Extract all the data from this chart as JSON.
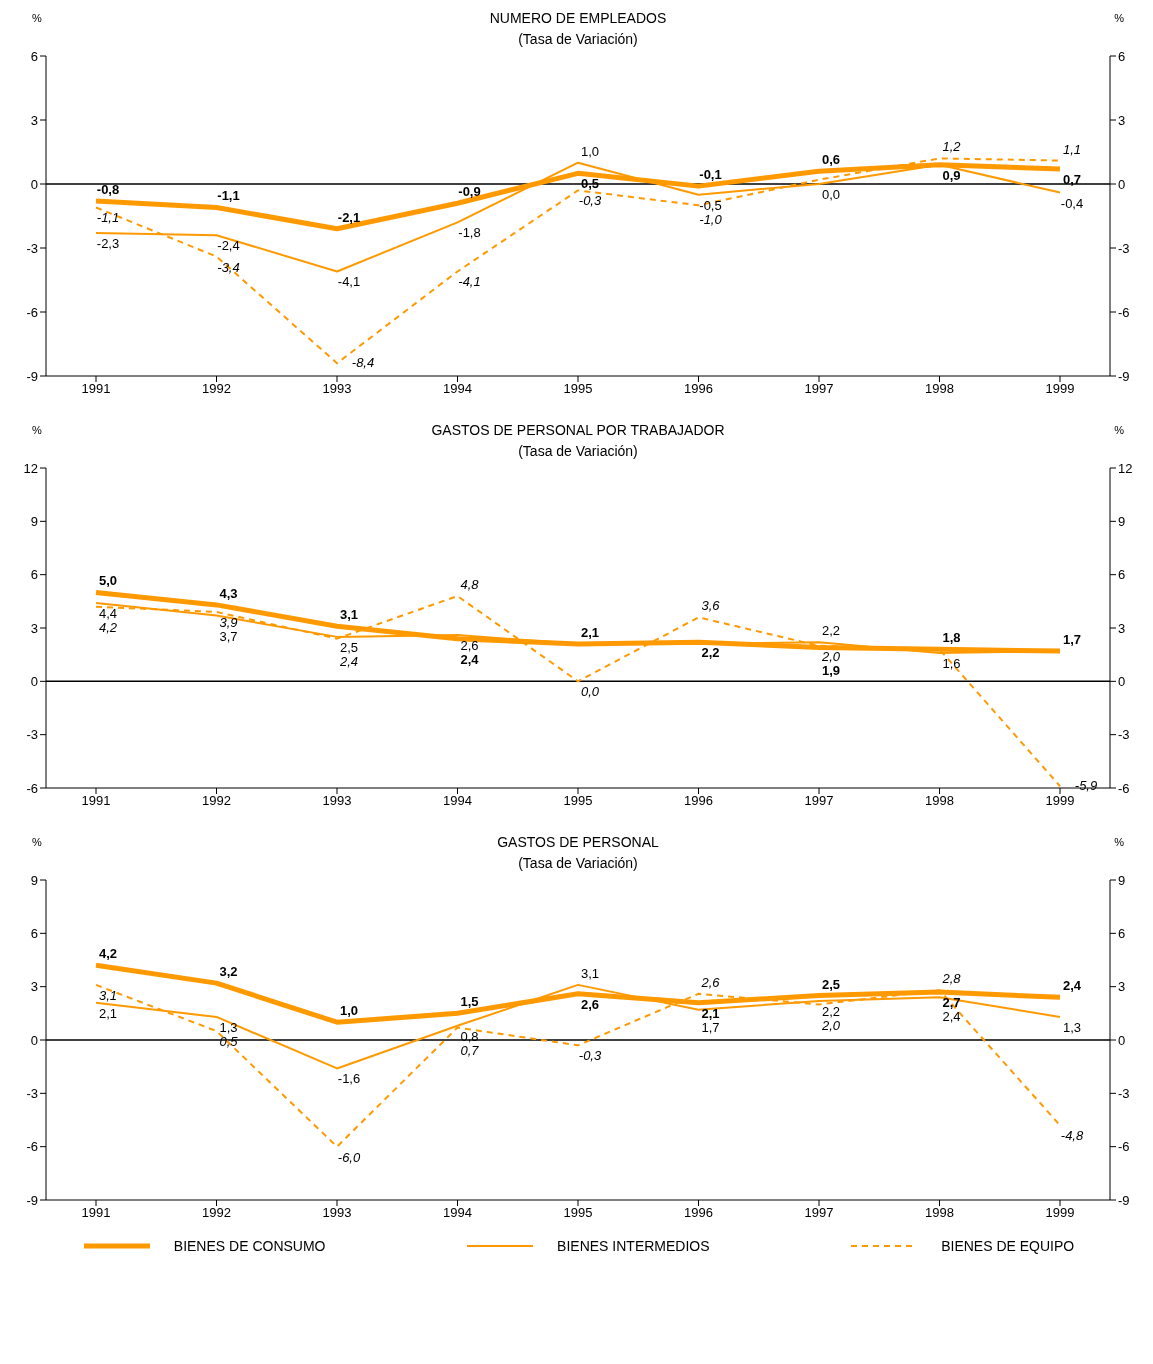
{
  "chart_data": [
    {
      "type": "line",
      "title": "NUMERO DE EMPLEADOS",
      "subtitle": "(Tasa de Variación)",
      "ylabel": "%",
      "y2label": "%",
      "categories": [
        "1991",
        "1992",
        "1993",
        "1994",
        "1995",
        "1996",
        "1997",
        "1998",
        "1999"
      ],
      "ylim": [
        -9,
        6
      ],
      "yticks": [
        -9,
        -6,
        -3,
        0,
        3,
        6
      ],
      "y2lim": [
        -9,
        6
      ],
      "y2ticks": [
        -9,
        -6,
        -3,
        0,
        3,
        6
      ],
      "ref_lines": [
        {
          "axis": "y",
          "value": 0,
          "color": "#000000"
        }
      ],
      "series": [
        {
          "color": "#ff9900",
          "line_style": "solid",
          "values": [
            -0.8,
            -1.1,
            -2.1,
            -0.9,
            0.5,
            -0.1,
            0.6,
            0.9,
            0.7
          ],
          "value_labels": [
            "-0,8",
            "-1,1",
            "-2,1",
            "-0,9",
            "0,5",
            "-0,1",
            "0,6",
            "0,9",
            "0,7"
          ]
        },
        {
          "color": "#ff9900",
          "line_style": "solid",
          "values": [
            -2.3,
            -2.4,
            -4.1,
            -1.8,
            1.0,
            -0.5,
            0.0,
            0.9,
            -0.4
          ],
          "value_labels": [
            "-2,3",
            "-2,4",
            "-4,1",
            "-1,8",
            "1,0",
            "-0,5",
            "0,0",
            null,
            "-0,4"
          ]
        },
        {
          "color": "#ff9900",
          "line_style": "dashed",
          "values": [
            -1.1,
            -3.4,
            -8.4,
            -4.1,
            -0.3,
            -1.0,
            0.2,
            1.2,
            1.1
          ],
          "value_labels": [
            "-1,1",
            "-3,4",
            "-8,4",
            "-4,1",
            "-0,3",
            "-1,0",
            null,
            "1,2",
            "1,1"
          ]
        }
      ]
    },
    {
      "type": "line",
      "title": "GASTOS DE PERSONAL POR TRABAJADOR",
      "subtitle": "(Tasa de Variación)",
      "ylabel": "%",
      "y2label": "%",
      "categories": [
        "1991",
        "1992",
        "1993",
        "1994",
        "1995",
        "1996",
        "1997",
        "1998",
        "1999"
      ],
      "ylim": [
        -6,
        12
      ],
      "yticks": [
        -6,
        -3,
        0,
        3,
        6,
        9,
        12
      ],
      "y2lim": [
        -6,
        12
      ],
      "y2ticks": [
        -6,
        -3,
        0,
        3,
        6,
        9,
        12
      ],
      "ref_lines": [
        {
          "axis": "y",
          "value": 0,
          "color": "#000000"
        }
      ],
      "series": [
        {
          "color": "#ff9900",
          "line_style": "solid",
          "values": [
            5.0,
            4.3,
            3.1,
            2.4,
            2.1,
            2.2,
            1.9,
            1.8,
            1.7
          ],
          "value_labels": [
            "5,0",
            "4,3",
            "3,1",
            "2,4",
            "2,1",
            "2,2",
            "1,9",
            "1,8",
            "1,7"
          ]
        },
        {
          "color": "#ff9900",
          "line_style": "solid",
          "values": [
            4.4,
            3.7,
            2.5,
            2.6,
            2.1,
            2.1,
            2.2,
            1.6,
            1.7
          ],
          "value_labels": [
            "4,4",
            "3,7",
            "2,5",
            "2,6",
            null,
            null,
            "2,2",
            "1,6",
            null
          ]
        },
        {
          "color": "#ff9900",
          "line_style": "dashed",
          "values": [
            4.2,
            3.9,
            2.4,
            4.8,
            0.0,
            3.6,
            2.0,
            1.8,
            -5.9
          ],
          "value_labels": [
            "4,2",
            "3,9",
            "2,4",
            "4,8",
            "0,0",
            "3,6",
            "2,0",
            null,
            "-5,9"
          ]
        }
      ]
    },
    {
      "type": "line",
      "title": "GASTOS DE PERSONAL",
      "subtitle": "(Tasa de Variación)",
      "ylabel": "%",
      "y2label": "%",
      "categories": [
        "1991",
        "1992",
        "1993",
        "1994",
        "1995",
        "1996",
        "1997",
        "1998",
        "1999"
      ],
      "ylim": [
        -9,
        9
      ],
      "yticks": [
        -9,
        -6,
        -3,
        0,
        3,
        6,
        9
      ],
      "y2lim": [
        -9,
        9
      ],
      "y2ticks": [
        -9,
        -6,
        -3,
        0,
        3,
        6,
        9
      ],
      "ref_lines": [
        {
          "axis": "y",
          "value": 0,
          "color": "#000000"
        }
      ],
      "legend": "bottom",
      "series": [
        {
          "name": "BIENES DE CONSUMO",
          "color": "#ff9900",
          "line_style": "solid",
          "values": [
            4.2,
            3.2,
            1.0,
            1.5,
            2.6,
            2.1,
            2.5,
            2.7,
            2.4
          ],
          "value_labels": [
            "4,2",
            "3,2",
            "1,0",
            "1,5",
            "2,6",
            "2,1",
            "2,5",
            "2,7",
            "2,4"
          ]
        },
        {
          "name": "BIENES INTERMEDIOS",
          "color": "#ff9900",
          "line_style": "solid",
          "values": [
            2.1,
            1.3,
            -1.6,
            0.8,
            3.1,
            1.7,
            2.2,
            2.4,
            1.3
          ],
          "value_labels": [
            "2,1",
            "1,3",
            "-1,6",
            "0,8",
            "3,1",
            "1,7",
            "2,2",
            "2,4",
            "1,3"
          ]
        },
        {
          "name": "BIENES DE EQUIPO",
          "color": "#ff9900",
          "line_style": "dashed",
          "values": [
            3.1,
            0.5,
            -6.0,
            0.7,
            -0.3,
            2.6,
            2.0,
            2.8,
            -4.8
          ],
          "value_labels": [
            "3,1",
            "0,5",
            "-6,0",
            "0,7",
            "-0,3",
            "2,6",
            "2,0",
            "2,8",
            "-4,8"
          ]
        }
      ]
    }
  ]
}
